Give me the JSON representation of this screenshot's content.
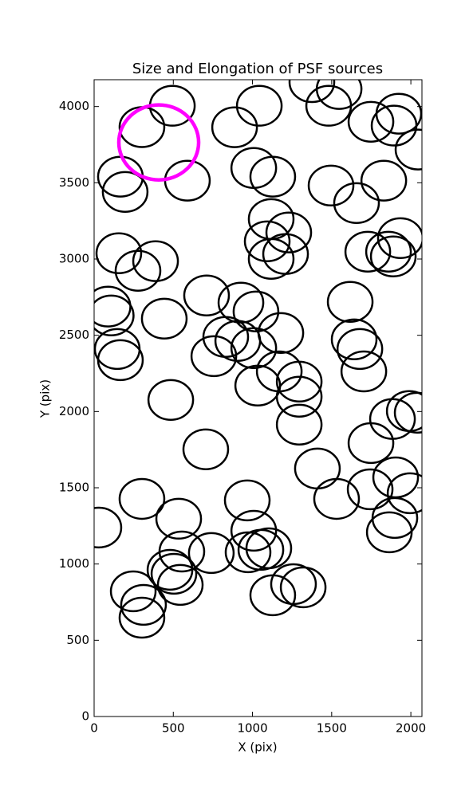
{
  "chart_data": {
    "type": "ellipse",
    "title": "Size and Elongation of PSF sources",
    "x_label": "X (pix)",
    "y_label": "Y (pix)",
    "xlim": [
      0,
      2070
    ],
    "ylim": [
      0,
      4176
    ],
    "xticks": [
      0,
      500,
      1000,
      1500,
      2000
    ],
    "yticks": [
      0,
      500,
      1000,
      1500,
      2000,
      2500,
      3000,
      3500,
      4000
    ],
    "series": [
      {
        "color": "#000000",
        "width": 282,
        "height": 261,
        "x": [
          302,
          494,
          166,
          196,
          589,
          887,
          1043,
          1375,
          1547,
          1481,
          1748,
          1924,
          1894,
          2045,
          1008,
          1128,
          1496,
          1829,
          1657,
          1118,
          1229,
          1093,
          1118,
          1209,
          156,
          277,
          388,
          1934,
          1728,
          1859,
          1889,
          88,
          108,
          710,
          927,
          1022,
          443,
          1617,
          1179,
          831,
          907,
          1008,
          756,
          1642,
          1678,
          146,
          166,
          1169,
          1703,
          1295,
          1295,
          1033,
          484,
          1295,
          1990,
          2040,
          1884,
          1748,
          705,
          1410,
          302,
          967,
          1531,
          1743,
          1904,
          1995,
          1899,
          534,
          30,
          1008,
          1864,
          554,
          740,
          972,
          1053,
          1103,
          479,
          504,
          544,
          247,
          312,
          302,
          1128,
          1259,
          1320
        ],
        "y": [
          3865,
          4005,
          3540,
          3440,
          3514,
          3864,
          4005,
          4160,
          4115,
          4005,
          3900,
          3953,
          3875,
          3718,
          3597,
          3540,
          3482,
          3514,
          3367,
          3262,
          3174,
          3116,
          3001,
          3033,
          3038,
          2923,
          2986,
          3137,
          3048,
          3048,
          3017,
          2688,
          2630,
          2761,
          2714,
          2656,
          2609,
          2719,
          2515,
          2489,
          2463,
          2416,
          2363,
          2473,
          2410,
          2410,
          2337,
          2263,
          2263,
          2196,
          2097,
          2170,
          2076,
          1914,
          2003,
          1992,
          1951,
          1793,
          1752,
          1626,
          1427,
          1417,
          1427,
          1490,
          1568,
          1464,
          1302,
          1297,
          1239,
          1218,
          1208,
          1082,
          1072,
          1077,
          1093,
          1103,
          962,
          936,
          863,
          821,
          732,
          648,
          795,
          868,
          847
        ]
      },
      {
        "color": "#ff00ff",
        "width": 504,
        "height": 492,
        "x": [
          408
        ],
        "y": [
          3765
        ]
      }
    ]
  }
}
